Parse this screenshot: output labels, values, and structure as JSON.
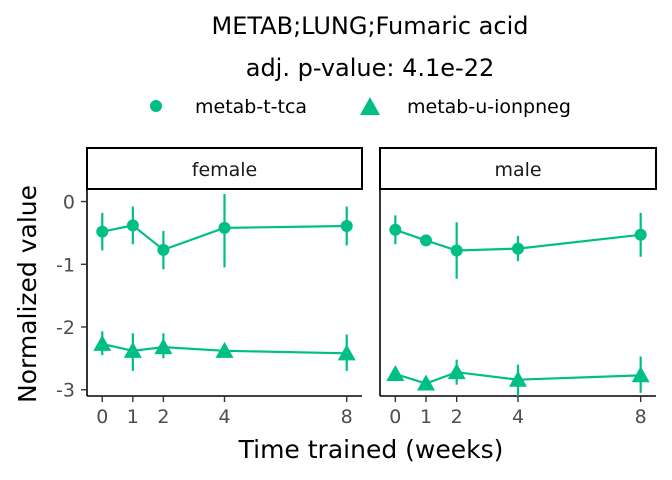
{
  "chart_data": {
    "type": "line",
    "title": "METAB;LUNG;Fumaric acid",
    "subtitle": "adj. p-value: 4.1e-22",
    "xlabel": "Time trained (weeks)",
    "ylabel": "Normalized value",
    "x_ticks": [
      0,
      1,
      2,
      4,
      8
    ],
    "y_ticks": [
      0,
      -1,
      -2,
      -3
    ],
    "xlim": [
      -0.5,
      8.5
    ],
    "ylim": [
      -3.1,
      0.2
    ],
    "grid": false,
    "legend_position": "top",
    "color": "#00BF86",
    "legend": [
      {
        "label": "metab-t-tca",
        "shape": "circle"
      },
      {
        "label": "metab-u-ionpneg",
        "shape": "triangle"
      }
    ],
    "panels": [
      {
        "label": "female",
        "series": [
          {
            "name": "metab-t-tca",
            "shape": "circle",
            "x": [
              0,
              1,
              2,
              4,
              8
            ],
            "y": [
              -0.48,
              -0.38,
              -0.77,
              -0.42,
              -0.39
            ],
            "lower": [
              -0.78,
              -0.68,
              -1.08,
              -1.05,
              -0.7
            ],
            "upper": [
              -0.18,
              -0.08,
              -0.47,
              0.12,
              -0.08
            ]
          },
          {
            "name": "metab-u-ionpneg",
            "shape": "triangle",
            "x": [
              0,
              1,
              2,
              4,
              8
            ],
            "y": [
              -2.27,
              -2.38,
              -2.32,
              -2.38,
              -2.42
            ],
            "lower": [
              -2.45,
              -2.7,
              -2.5,
              -2.38,
              -2.7
            ],
            "upper": [
              -2.07,
              -2.1,
              -2.1,
              -2.38,
              -2.12
            ]
          }
        ]
      },
      {
        "label": "male",
        "series": [
          {
            "name": "metab-t-tca",
            "shape": "circle",
            "x": [
              0,
              1,
              2,
              4,
              8
            ],
            "y": [
              -0.45,
              -0.62,
              -0.78,
              -0.75,
              -0.53
            ],
            "lower": [
              -0.68,
              -0.62,
              -1.23,
              -0.95,
              -0.88
            ],
            "upper": [
              -0.22,
              -0.62,
              -0.33,
              -0.55,
              -0.18
            ]
          },
          {
            "name": "metab-u-ionpneg",
            "shape": "triangle",
            "x": [
              0,
              1,
              2,
              4,
              8
            ],
            "y": [
              -2.75,
              -2.9,
              -2.72,
              -2.84,
              -2.77
            ],
            "lower": [
              -2.75,
              -2.98,
              -2.92,
              -3.1,
              -3.05
            ],
            "upper": [
              -2.75,
              -2.82,
              -2.52,
              -2.6,
              -2.47
            ]
          }
        ]
      }
    ]
  }
}
